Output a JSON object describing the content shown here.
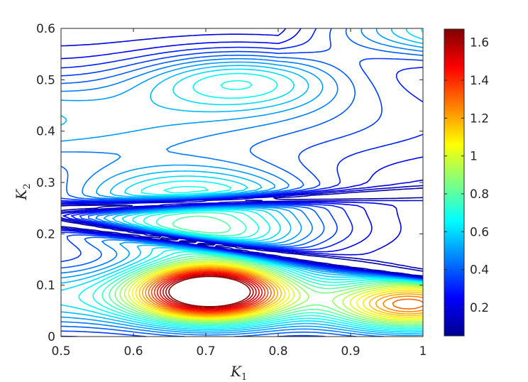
{
  "chart_data": {
    "type": "contour",
    "xlabel": "K",
    "xlabel_sub": "1",
    "ylabel": "K",
    "ylabel_sub": "2",
    "xlim": [
      0.5,
      1.0
    ],
    "ylim": [
      0.0,
      0.6
    ],
    "x_ticks": [
      0.5,
      0.6,
      0.7,
      0.8,
      0.9,
      1.0
    ],
    "x_tick_labels": [
      "0.5",
      "0.6",
      "0.7",
      "0.8",
      "0.9",
      "1"
    ],
    "y_ticks": [
      0.0,
      0.1,
      0.2,
      0.3,
      0.4,
      0.5,
      0.6
    ],
    "y_tick_labels": [
      "0",
      "0.1",
      "0.2",
      "0.3",
      "0.4",
      "0.5",
      "0.6"
    ],
    "colorbar": {
      "colormap": "jet",
      "range": [
        0.05,
        1.67
      ],
      "ticks": [
        0.2,
        0.4,
        0.6,
        0.8,
        1.0,
        1.2,
        1.4,
        1.6
      ],
      "tick_labels": [
        "0.2",
        "0.4",
        "0.6",
        "0.8",
        "1",
        "1.2",
        "1.4",
        "1.6"
      ]
    },
    "features": [
      {
        "kind": "peak",
        "x": 0.705,
        "y": 0.09,
        "value": 1.62
      },
      {
        "kind": "local_max",
        "x": 0.98,
        "y": 0.06,
        "value": 1.2
      },
      {
        "kind": "local_max",
        "x": 0.68,
        "y": 0.27,
        "value": 0.7
      },
      {
        "kind": "local_max",
        "x": 0.7,
        "y": 0.2,
        "value": 0.62
      },
      {
        "kind": "local_max",
        "x": 0.75,
        "y": 0.5,
        "value": 0.75
      },
      {
        "kind": "ridge_low",
        "y_start": 0.22,
        "y_end": 0.12,
        "value": 0.05
      },
      {
        "kind": "ridge_low",
        "y_start": 0.25,
        "y_end": 0.28,
        "value": 0.05
      }
    ]
  }
}
